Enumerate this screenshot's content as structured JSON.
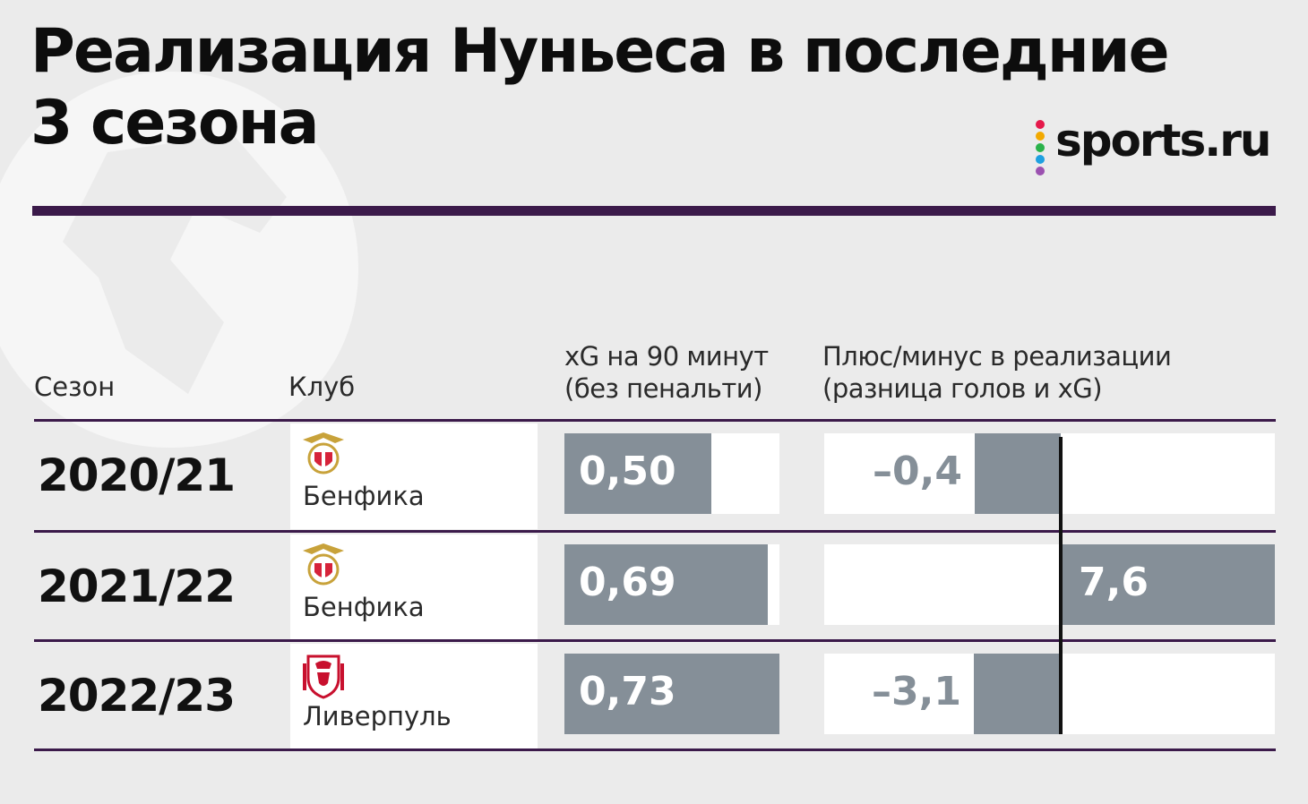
{
  "title": "Реализация Нуньеса в последние 3 сезона",
  "brand": "sports.ru",
  "colors": {
    "accent_rule": "#3b1a4a",
    "bar": "#858f98",
    "background": "#ebebeb",
    "brand_dots": [
      "#e5194b",
      "#f2a900",
      "#2ab24a",
      "#1ea0e0",
      "#9b51b0"
    ]
  },
  "columns": {
    "season": "Сезон",
    "club": "Клуб",
    "xg_line1": "xG на 90 минут",
    "xg_line2": "(без пенальти)",
    "pm_line1": "Плюс/минус в реализации",
    "pm_line2": "(разница голов и xG)"
  },
  "chart_data": {
    "type": "bar",
    "title": "Реализация Нуньеса в последние 3 сезона",
    "categories": [
      "2020/21",
      "2021/22",
      "2022/23"
    ],
    "series": [
      {
        "name": "xG на 90 минут (без пенальти)",
        "values": [
          0.5,
          0.69,
          0.73
        ]
      },
      {
        "name": "Плюс/минус в реализации (разница голов и xG)",
        "values": [
          -0.4,
          7.6,
          -3.1
        ]
      }
    ]
  },
  "rows": [
    {
      "season": "2020/21",
      "club": "Бенфика",
      "logo": "benfica-crest-icon",
      "xg": 0.5,
      "xg_label": "0,50",
      "pm": -0.4,
      "pm_label": "–0,4"
    },
    {
      "season": "2021/22",
      "club": "Бенфика",
      "logo": "benfica-crest-icon",
      "xg": 0.69,
      "xg_label": "0,69",
      "pm": 7.6,
      "pm_label": "7,6"
    },
    {
      "season": "2022/23",
      "club": "Ливерпуль",
      "logo": "liverpool-crest-icon",
      "xg": 0.73,
      "xg_label": "0,73",
      "pm": -3.1,
      "pm_label": "–3,1"
    }
  ]
}
